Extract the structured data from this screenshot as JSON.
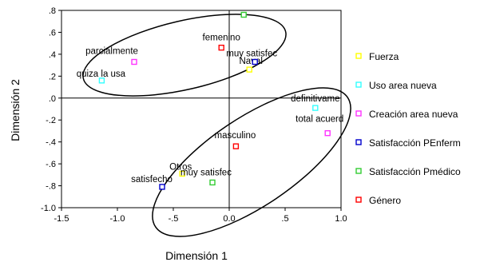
{
  "chart_data": {
    "type": "scatter",
    "xlabel": "Dimensión 1",
    "ylabel": "Dimensión 2",
    "xlim": [
      -1.5,
      1.0
    ],
    "ylim": [
      -1.0,
      0.8
    ],
    "x_ticks": [
      {
        "value": -1.5,
        "label": "-1.5"
      },
      {
        "value": -1.0,
        "label": "-1.0"
      },
      {
        "value": -0.5,
        "label": "-.5"
      },
      {
        "value": 0.0,
        "label": "0.0"
      },
      {
        "value": 0.5,
        "label": ".5"
      },
      {
        "value": 1.0,
        "label": "1.0"
      }
    ],
    "y_ticks": [
      {
        "value": 0.8,
        "label": ".8"
      },
      {
        "value": 0.6,
        "label": ".6"
      },
      {
        "value": 0.4,
        "label": ".4"
      },
      {
        "value": 0.2,
        "label": ".2"
      },
      {
        "value": 0.0,
        "label": ".0"
      },
      {
        "value": -0.2,
        "label": "-.2"
      },
      {
        "value": -0.4,
        "label": "-.4"
      },
      {
        "value": -0.6,
        "label": "-.6"
      },
      {
        "value": -0.8,
        "label": "-.8"
      },
      {
        "value": -1.0,
        "label": "-1.0"
      }
    ],
    "legend_position": "right",
    "series": [
      {
        "name": "Fuerza",
        "color": "#ffff00",
        "points": [
          {
            "x": 0.18,
            "y": 0.26,
            "label": "Naval"
          },
          {
            "x": -0.42,
            "y": -0.69,
            "label": "Otros"
          }
        ]
      },
      {
        "name": "Uso area nueva",
        "color": "#33ffff",
        "points": [
          {
            "x": -1.14,
            "y": 0.16,
            "label": "quiza la usa"
          },
          {
            "x": 0.77,
            "y": -0.09,
            "label": "definitivame"
          }
        ]
      },
      {
        "name": "Creación area nueva",
        "color": "#ff33ff",
        "points": [
          {
            "x": -0.85,
            "y": 0.33,
            "label": "parcialmente"
          },
          {
            "x": 0.88,
            "y": -0.32,
            "label": "total acuerd"
          }
        ]
      },
      {
        "name": "Satisfacción PEnferm",
        "color": "#0000cc",
        "points": [
          {
            "x": 0.23,
            "y": 0.33,
            "label": "muy satisfec"
          },
          {
            "x": -0.6,
            "y": -0.81,
            "label": "satisfecho"
          }
        ]
      },
      {
        "name": "Satisfacción Pmédico",
        "color": "#33cc33",
        "points": [
          {
            "x": 0.13,
            "y": 0.76,
            "label": ""
          },
          {
            "x": -0.15,
            "y": -0.77,
            "label": "muy satisfec"
          }
        ]
      },
      {
        "name": "Género",
        "color": "#ff0000",
        "points": [
          {
            "x": -0.07,
            "y": 0.46,
            "label": "femenino"
          },
          {
            "x": 0.06,
            "y": -0.44,
            "label": "masculino"
          }
        ]
      }
    ]
  }
}
